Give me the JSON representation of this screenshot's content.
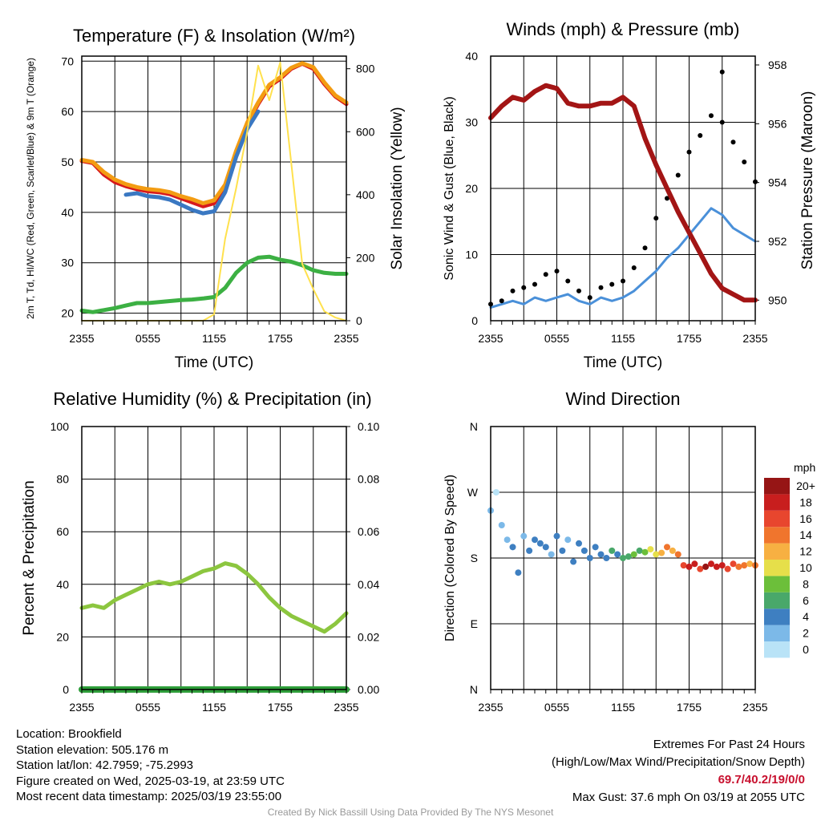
{
  "chart_data": [
    {
      "type": "line",
      "title": "Temperature (F) & Insolation (W/m²)",
      "xlabel": "Time (UTC)",
      "ylabel": "2m T, Td, HI/WC (Red, Green, Scarlet/Blue) & 9m T (Orange)",
      "y2label": "Solar Insolation (Yellow)",
      "x_ticks": [
        "2355",
        "0555",
        "1155",
        "1755",
        "2355"
      ],
      "ylim": [
        18.5,
        71
      ],
      "y_ticks": [
        20,
        30,
        40,
        50,
        60,
        70
      ],
      "y2lim": [
        0,
        840
      ],
      "y2_ticks": [
        0,
        200,
        400,
        600,
        800
      ],
      "x_hours": [
        0,
        1,
        2,
        3,
        4,
        5,
        6,
        7,
        8,
        9,
        10,
        11,
        12,
        13,
        14,
        15,
        16,
        17,
        18,
        19,
        20,
        21,
        22,
        23,
        24
      ],
      "series": [
        {
          "name": "2m T",
          "color": "#d7191c",
          "axis": "left",
          "values": [
            50.2,
            49.8,
            47.5,
            46,
            45.2,
            44.6,
            44.2,
            44,
            43.6,
            42.8,
            42,
            41.2,
            41.8,
            45,
            52,
            57.5,
            61.5,
            65,
            66.5,
            68.5,
            69.5,
            68.5,
            65.5,
            63,
            61.5
          ]
        },
        {
          "name": "9m T",
          "color": "#f39c12",
          "axis": "left",
          "values": [
            50.4,
            50,
            48,
            46.5,
            45.6,
            45,
            44.6,
            44.4,
            44,
            43.2,
            42.6,
            41.8,
            42.4,
            45.5,
            52.2,
            57.8,
            61.8,
            65.3,
            66.8,
            68.7,
            69.6,
            68.8,
            65.8,
            63.2,
            61.8
          ]
        },
        {
          "name": "HI/WC",
          "color": "#3a78c2",
          "axis": "left",
          "gaps": true,
          "values": [
            null,
            null,
            null,
            null,
            43.5,
            43.8,
            43.2,
            43,
            42.5,
            41.5,
            40.5,
            39.8,
            40.2,
            44,
            51,
            56.5,
            60,
            null,
            null,
            null,
            null,
            null,
            null,
            null,
            null
          ]
        },
        {
          "name": "Td",
          "color": "#3cb043",
          "axis": "left",
          "values": [
            20.5,
            20.2,
            20.6,
            21,
            21.5,
            22,
            22,
            22.2,
            22.4,
            22.6,
            22.7,
            22.9,
            23.2,
            25,
            28,
            30,
            31,
            31.2,
            30.6,
            30.2,
            29.5,
            28.5,
            28,
            27.8,
            27.8
          ]
        },
        {
          "name": "Solar Insolation",
          "color": "#ffe14d",
          "axis": "right",
          "values": [
            0,
            0,
            0,
            0,
            0,
            0,
            0,
            0,
            0,
            0,
            0,
            0,
            20,
            260,
            420,
            600,
            810,
            700,
            820,
            500,
            180,
            100,
            30,
            10,
            0
          ]
        }
      ]
    },
    {
      "type": "line",
      "title": "Winds (mph) & Pressure (mb)",
      "xlabel": "Time (UTC)",
      "ylabel": "Sonic Wind & Gust (Blue, Black)",
      "y2label": "Station Pressure (Maroon)",
      "x_ticks": [
        "2355",
        "0555",
        "1155",
        "1755",
        "2355"
      ],
      "ylim": [
        0,
        40
      ],
      "y_ticks": [
        0,
        10,
        20,
        30,
        40
      ],
      "y2lim": [
        949.3,
        958.3
      ],
      "y2_ticks": [
        950,
        952,
        954,
        956,
        958
      ],
      "x_hours": [
        0,
        1,
        2,
        3,
        4,
        5,
        6,
        7,
        8,
        9,
        10,
        11,
        12,
        13,
        14,
        15,
        16,
        17,
        18,
        19,
        20,
        21,
        22,
        23,
        24
      ],
      "series": [
        {
          "name": "Sonic Wind",
          "color": "#4a90d9",
          "axis": "left",
          "values": [
            2,
            2.5,
            3,
            2.5,
            3.5,
            3,
            3.5,
            4,
            3,
            2.5,
            3.5,
            3,
            3.5,
            4.5,
            6,
            7.5,
            9.5,
            11,
            13,
            15,
            17,
            16,
            14,
            13,
            12
          ]
        },
        {
          "name": "Gust",
          "color": "#000000",
          "axis": "left",
          "values": [
            2.5,
            3,
            4.5,
            5,
            5.5,
            7,
            7.5,
            6,
            4.5,
            3.5,
            5,
            5.5,
            6,
            8,
            11,
            15.5,
            18.5,
            22,
            25.5,
            28,
            31,
            30,
            27,
            24,
            21
          ]
        },
        {
          "name": "Station Pressure",
          "color": "#a31515",
          "axis": "right",
          "values": [
            956.2,
            956.6,
            956.9,
            956.8,
            957.1,
            957.3,
            957.2,
            956.7,
            956.6,
            956.6,
            956.7,
            956.7,
            956.9,
            956.6,
            955.5,
            954.6,
            953.8,
            953,
            952.3,
            951.6,
            950.9,
            950.4,
            950.2,
            950,
            950
          ]
        }
      ],
      "gust_peak": 37.6
    },
    {
      "type": "line",
      "title": "Relative Humidity (%) & Precipitation (in)",
      "ylabel": "Percent & Precipitation",
      "x_ticks": [
        "2355",
        "0555",
        "1155",
        "1755",
        "2355"
      ],
      "ylim": [
        0,
        100
      ],
      "y_ticks": [
        0,
        20,
        40,
        60,
        80,
        100
      ],
      "y2lim": [
        0,
        0.1
      ],
      "y2_ticks": [
        "0.00",
        "0.02",
        "0.04",
        "0.06",
        "0.08",
        "0.10"
      ],
      "x_hours": [
        0,
        1,
        2,
        3,
        4,
        5,
        6,
        7,
        8,
        9,
        10,
        11,
        12,
        13,
        14,
        15,
        16,
        17,
        18,
        19,
        20,
        21,
        22,
        23,
        24
      ],
      "series": [
        {
          "name": "Relative Humidity",
          "color": "#8cc63f",
          "axis": "left",
          "values": [
            31,
            32,
            31,
            34,
            36,
            38,
            40,
            41,
            40,
            41,
            43,
            45,
            46,
            48,
            47,
            44,
            40,
            35,
            31,
            28,
            26,
            24,
            22,
            25,
            29
          ]
        },
        {
          "name": "Precipitation",
          "color": "#2e9e3a",
          "axis": "right",
          "values": [
            0,
            0,
            0,
            0,
            0,
            0,
            0,
            0,
            0,
            0,
            0,
            0,
            0,
            0,
            0,
            0,
            0,
            0,
            0,
            0,
            0,
            0,
            0,
            0,
            0
          ]
        }
      ]
    },
    {
      "type": "scatter",
      "title": "Wind Direction",
      "ylabel": "Direction (Colored By Speed)",
      "x_ticks": [
        "2355",
        "0555",
        "1155",
        "1755",
        "2355"
      ],
      "y_ticks": [
        "N",
        "E",
        "S",
        "W",
        "N"
      ],
      "ylim": [
        0,
        360
      ],
      "colorbar": {
        "unit": "mph",
        "labels": [
          "0",
          "2",
          "4",
          "6",
          "8",
          "10",
          "12",
          "14",
          "16",
          "18",
          "20+"
        ],
        "colors": [
          "#b9e3f7",
          "#7cb9e8",
          "#3e7fc1",
          "#49a86a",
          "#6cbf3a",
          "#e6df4a",
          "#f7b042",
          "#f0752d",
          "#e8462e",
          "#c81e1e",
          "#961515"
        ]
      },
      "x_hours": [
        0,
        0.5,
        1,
        1.5,
        2,
        2.5,
        3,
        3.5,
        4,
        4.5,
        5,
        5.5,
        6,
        6.5,
        7,
        7.5,
        8,
        8.5,
        9,
        9.5,
        10,
        10.5,
        11,
        11.5,
        12,
        12.5,
        13,
        13.5,
        14,
        14.5,
        15,
        15.5,
        16,
        16.5,
        17,
        17.5,
        18,
        18.5,
        19,
        19.5,
        20,
        20.5,
        21,
        21.5,
        22,
        22.5,
        23,
        23.5,
        24
      ],
      "direction_deg": [
        245,
        270,
        225,
        205,
        195,
        160,
        210,
        190,
        205,
        200,
        195,
        185,
        210,
        190,
        205,
        175,
        200,
        190,
        180,
        195,
        185,
        180,
        190,
        185,
        180,
        182,
        185,
        190,
        188,
        192,
        185,
        187,
        195,
        190,
        185,
        170,
        168,
        172,
        165,
        168,
        172,
        168,
        170,
        165,
        172,
        168,
        170,
        172,
        170
      ],
      "speed_mph": [
        1,
        0,
        2,
        1,
        3,
        3,
        2,
        3,
        3,
        4,
        3,
        2,
        4,
        3,
        2,
        3,
        4,
        3,
        3,
        4,
        3,
        4,
        5,
        4,
        5,
        6,
        7,
        6,
        8,
        9,
        10,
        11,
        13,
        11,
        14,
        16,
        17,
        18,
        16,
        19,
        17,
        18,
        17,
        16,
        15,
        14,
        13,
        12,
        13
      ]
    }
  ],
  "station": {
    "location": "Location: Brookfield",
    "elevation": "Station elevation: 505.176 m",
    "latlon": "Station lat/lon: 42.7959; -75.2993",
    "created": "Figure created on Wed, 2025-03-19, at 23:59 UTC",
    "recent": "Most recent data timestamp: 2025/03/19 23:55:00"
  },
  "extremes": {
    "title": "Extremes For Past 24 Hours",
    "subtitle": "(High/Low/Max Wind/Precipitation/Snow Depth)",
    "values": "69.7/40.2/19/0/0",
    "max_gust": "Max Gust: 37.6 mph On 03/19 at 2055 UTC"
  },
  "credit": "Created By Nick Bassill Using Data Provided By The NYS Mesonet"
}
